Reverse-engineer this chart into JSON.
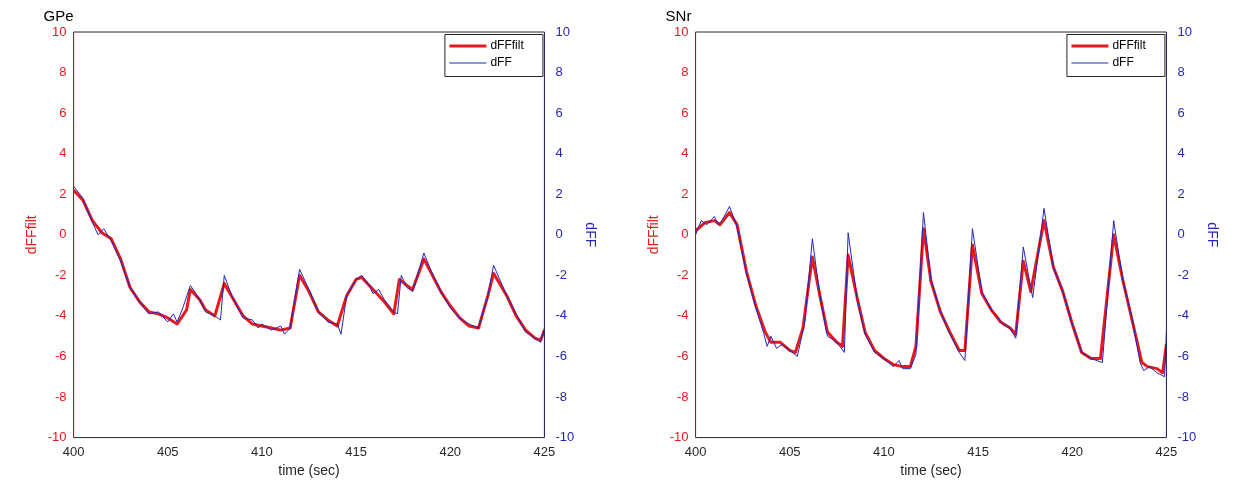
{
  "chart_data": [
    {
      "type": "line",
      "title": "GPe",
      "xlabel": "time (sec)",
      "ylabel": "dFFfilt",
      "y2label": "dFF",
      "xlim": [
        400,
        425
      ],
      "xticks": [
        400,
        405,
        410,
        415,
        420,
        425
      ],
      "ylim": [
        -10,
        10
      ],
      "yticks": [
        -10,
        -8,
        -6,
        -4,
        -2,
        0,
        2,
        4,
        6,
        8,
        10
      ],
      "y2lim": [
        -10,
        10
      ],
      "y2ticks": [
        -10,
        -8,
        -6,
        -4,
        -2,
        0,
        2,
        4,
        6,
        8,
        10
      ],
      "legend": "top right",
      "grid": false,
      "marker": "none",
      "series": [
        {
          "name": "dFFfilt",
          "color": "#e8191c",
          "axis": "y",
          "x": [
            400,
            400.5,
            401,
            401.5,
            402,
            402.5,
            403,
            403.5,
            404,
            404.5,
            405,
            405.5,
            406,
            406.2,
            406.7,
            407,
            407.5,
            408,
            408.5,
            409,
            409.5,
            410,
            410.5,
            411,
            411.5,
            412,
            412.5,
            413,
            413.5,
            414,
            414.5,
            415,
            415.3,
            415.7,
            416,
            416.5,
            417,
            417.3,
            417.7,
            418,
            418.6,
            419,
            419.5,
            420,
            420.5,
            421,
            421.5,
            422,
            422.3,
            423,
            423.5,
            424,
            424.5,
            424.8,
            425
          ],
          "values": [
            2.2,
            1.7,
            0.7,
            0.1,
            -0.2,
            -1.2,
            -2.6,
            -3.3,
            -3.8,
            -3.9,
            -4.1,
            -4.4,
            -3.7,
            -2.7,
            -3.2,
            -3.7,
            -4.0,
            -2.4,
            -3.2,
            -4.0,
            -4.4,
            -4.5,
            -4.6,
            -4.7,
            -4.6,
            -2.0,
            -2.8,
            -3.8,
            -4.2,
            -4.5,
            -3.0,
            -2.2,
            -2.1,
            -2.5,
            -2.8,
            -3.3,
            -3.9,
            -2.2,
            -2.5,
            -2.7,
            -1.2,
            -1.9,
            -2.8,
            -3.5,
            -4.1,
            -4.5,
            -4.6,
            -3.0,
            -1.9,
            -3.0,
            -4.0,
            -4.7,
            -5.1,
            -5.2,
            -4.7
          ]
        },
        {
          "name": "dFF",
          "color": "#2626b8",
          "axis": "y2",
          "x": [
            400,
            400.5,
            401,
            401.3,
            401.6,
            402,
            402.5,
            403,
            403.5,
            404,
            404.5,
            405,
            405.3,
            405.5,
            405.8,
            406.2,
            406.5,
            406.7,
            407,
            407.5,
            407.8,
            408,
            408.4,
            409,
            409.5,
            409.8,
            410,
            410.5,
            411,
            411.2,
            411.5,
            412,
            412.5,
            413,
            413.5,
            414,
            414.2,
            414.5,
            415,
            415.3,
            415.7,
            415.9,
            416.2,
            416.5,
            417,
            417.2,
            417.4,
            417.7,
            418,
            418.6,
            419,
            419.5,
            420,
            420.5,
            421,
            421.5,
            422,
            422.3,
            423,
            423.5,
            424,
            424.5,
            424.8,
            425
          ],
          "values": [
            2.4,
            1.8,
            0.6,
            0.0,
            0.3,
            -0.3,
            -1.3,
            -2.6,
            -3.3,
            -3.9,
            -3.8,
            -4.3,
            -3.9,
            -4.3,
            -3.6,
            -2.5,
            -2.9,
            -3.2,
            -3.8,
            -4.0,
            -4.2,
            -2.0,
            -3.0,
            -4.1,
            -4.2,
            -4.6,
            -4.4,
            -4.7,
            -4.5,
            -4.9,
            -4.6,
            -1.7,
            -2.7,
            -3.8,
            -4.3,
            -4.4,
            -4.9,
            -3.0,
            -2.2,
            -2.0,
            -2.5,
            -2.9,
            -2.7,
            -3.2,
            -3.8,
            -3.9,
            -2.0,
            -2.6,
            -2.8,
            -0.9,
            -1.8,
            -2.8,
            -3.6,
            -4.1,
            -4.4,
            -4.6,
            -3.0,
            -1.5,
            -3.0,
            -3.9,
            -4.8,
            -5.1,
            -5.3,
            -4.6
          ]
        }
      ]
    },
    {
      "type": "line",
      "title": "SNr",
      "xlabel": "time (sec)",
      "ylabel": "dFFfilt",
      "y2label": "dFF",
      "xlim": [
        400,
        425
      ],
      "xticks": [
        400,
        405,
        410,
        415,
        420,
        425
      ],
      "ylim": [
        -10,
        10
      ],
      "yticks": [
        -10,
        -8,
        -6,
        -4,
        -2,
        0,
        2,
        4,
        6,
        8,
        10
      ],
      "y2lim": [
        -10,
        10
      ],
      "y2ticks": [
        -10,
        -8,
        -6,
        -4,
        -2,
        0,
        2,
        4,
        6,
        8,
        10
      ],
      "legend": "top right",
      "grid": false,
      "marker": "none",
      "series": [
        {
          "name": "dFFfilt",
          "color": "#e8191c",
          "axis": "y",
          "x": [
            400,
            400.5,
            401,
            401.3,
            401.8,
            402.2,
            402.7,
            403.2,
            403.7,
            404,
            404.5,
            405,
            405.3,
            405.7,
            406.2,
            406.6,
            407,
            407.5,
            407.8,
            408.1,
            408.6,
            409,
            409.5,
            410,
            410.5,
            411,
            411.4,
            411.7,
            412.1,
            412.5,
            413,
            413.5,
            414,
            414.3,
            414.7,
            415.2,
            415.7,
            416.2,
            416.7,
            417,
            417.4,
            417.8,
            418.5,
            419,
            419.5,
            420,
            420.5,
            421,
            421.5,
            422.2,
            422.7,
            423.2,
            423.7,
            424,
            424.5,
            424.8,
            425
          ],
          "values": [
            0.2,
            0.6,
            0.7,
            0.5,
            1.1,
            0.5,
            -1.8,
            -3.5,
            -4.8,
            -5.3,
            -5.3,
            -5.7,
            -5.8,
            -4.6,
            -1.1,
            -3.0,
            -4.8,
            -5.3,
            -5.5,
            -1.0,
            -3.2,
            -4.8,
            -5.7,
            -6.1,
            -6.4,
            -6.5,
            -6.5,
            -5.5,
            0.3,
            -2.3,
            -3.8,
            -4.8,
            -5.7,
            -5.7,
            -0.5,
            -2.9,
            -3.7,
            -4.3,
            -4.6,
            -4.9,
            -1.3,
            -2.8,
            0.7,
            -1.6,
            -2.8,
            -4.4,
            -5.8,
            -6.1,
            -6.1,
            0.0,
            -2.3,
            -4.3,
            -6.3,
            -6.5,
            -6.6,
            -6.8,
            -5.4
          ]
        },
        {
          "name": "dFF",
          "color": "#2626b8",
          "axis": "y2",
          "x": [
            400,
            400.3,
            400.6,
            401,
            401.2,
            401.4,
            401.8,
            402.2,
            402.7,
            403.2,
            403.6,
            403.8,
            404,
            404.3,
            404.6,
            405,
            405.4,
            405.8,
            406.2,
            406.6,
            407,
            407.5,
            407.9,
            408.1,
            408.6,
            409,
            409.5,
            410,
            410.5,
            410.8,
            411,
            411.4,
            411.7,
            412.1,
            412.5,
            413,
            413.5,
            414,
            414.3,
            414.7,
            415.2,
            415.7,
            416,
            416.3,
            416.7,
            417,
            417.4,
            417.9,
            418.5,
            419,
            419.5,
            420,
            420.5,
            421,
            421.6,
            422.2,
            422.7,
            423.2,
            423.6,
            423.8,
            424.1,
            424.5,
            424.9,
            425
          ],
          "values": [
            0.0,
            0.7,
            0.5,
            0.9,
            0.5,
            0.7,
            1.4,
            0.4,
            -1.9,
            -3.6,
            -4.8,
            -5.5,
            -5.0,
            -5.6,
            -5.4,
            -5.7,
            -6.0,
            -4.3,
            -0.2,
            -3.0,
            -5.0,
            -5.3,
            -5.8,
            0.1,
            -3.3,
            -4.9,
            -5.8,
            -6.1,
            -6.5,
            -6.2,
            -6.6,
            -6.6,
            -5.9,
            1.1,
            -2.2,
            -3.8,
            -4.9,
            -5.8,
            -6.2,
            0.3,
            -2.8,
            -3.7,
            -4.0,
            -4.4,
            -4.6,
            -5.1,
            -0.6,
            -3.1,
            1.3,
            -1.6,
            -2.8,
            -4.4,
            -5.8,
            -6.1,
            -6.3,
            0.7,
            -2.3,
            -4.2,
            -6.3,
            -6.7,
            -6.5,
            -6.8,
            -7.0,
            -4.8
          ]
        }
      ]
    }
  ]
}
